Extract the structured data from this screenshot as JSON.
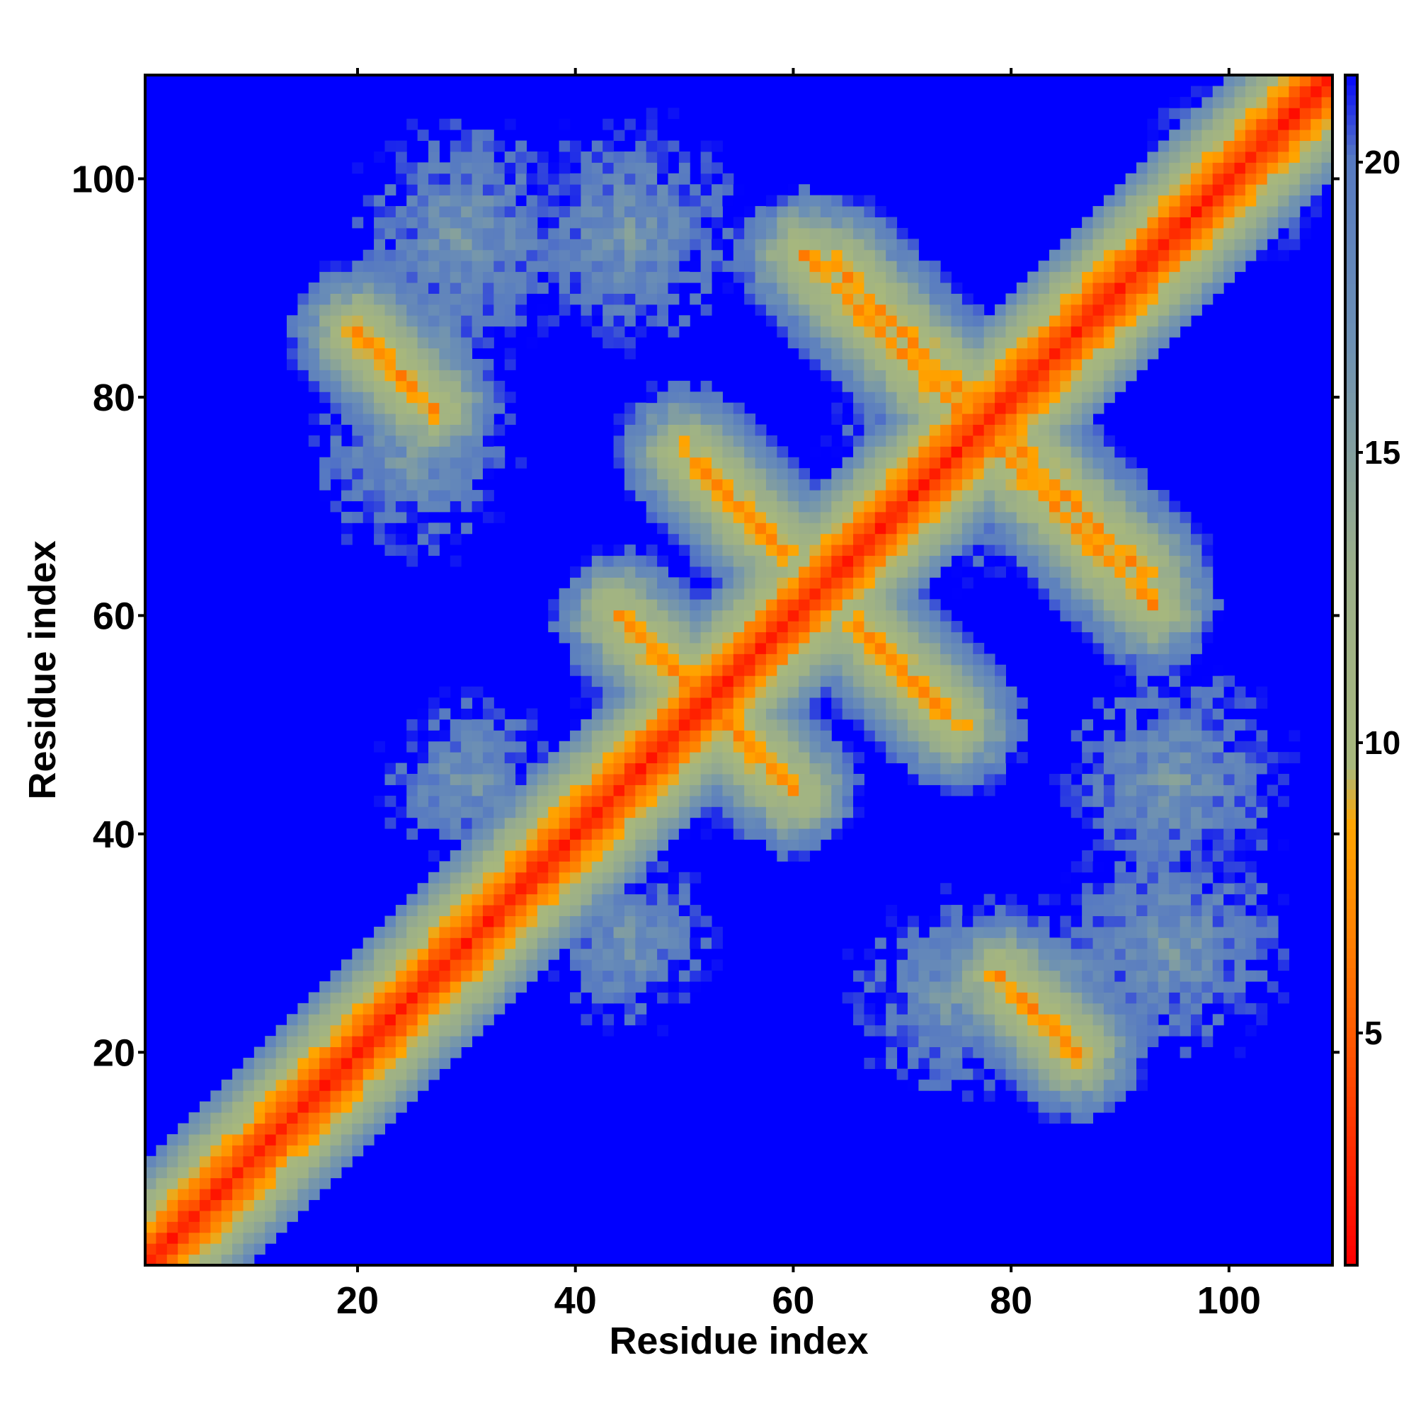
{
  "chart_data": {
    "type": "heatmap",
    "title": "",
    "xlabel": "Residue index",
    "ylabel": "Residue index",
    "xlim": [
      1,
      109
    ],
    "ylim": [
      1,
      109
    ],
    "x_ticks": [
      20,
      40,
      60,
      80,
      100
    ],
    "y_ticks": [
      20,
      40,
      60,
      80,
      100
    ],
    "colorbar": {
      "ticks": [
        5,
        10,
        15,
        20
      ],
      "range": [
        1,
        21.5
      ],
      "palette": [
        {
          "value": 1,
          "color": "#ff0000"
        },
        {
          "value": 6.5,
          "color": "#ff7f00"
        },
        {
          "value": 8.5,
          "color": "#ffa500"
        },
        {
          "value": 9.5,
          "color": "#a8b87c"
        },
        {
          "value": 13,
          "color": "#9aae8a"
        },
        {
          "value": 17,
          "color": "#6b8fb5"
        },
        {
          "value": 20,
          "color": "#5679c2"
        },
        {
          "value": 21.5,
          "color": "#0000ff"
        }
      ],
      "background_color": "#0000ff"
    },
    "matrix_size": 109,
    "description_of_values": "symmetric residue-residue distance matrix; values above the colorbar maximum are drawn as background",
    "contact_features": [
      {
        "type": "diagonal",
        "from": 1,
        "to": 109
      },
      {
        "type": "antiparallel",
        "i_start": 44,
        "i_end": 57,
        "j_start": 60,
        "j_end": 47
      },
      {
        "type": "antiparallel",
        "i_start": 52,
        "i_end": 59,
        "j_start": 73,
        "j_end": 65
      },
      {
        "type": "antiparallel",
        "i_start": 66,
        "i_end": 75,
        "j_start": 59,
        "j_end": 52
      },
      {
        "type": "antiparallel",
        "i_start": 64,
        "i_end": 76,
        "j_start": 92,
        "j_end": 79
      },
      {
        "type": "antiparallel",
        "i_start": 77,
        "i_end": 93,
        "j_start": 77,
        "j_end": 64
      },
      {
        "type": "antiparallel",
        "i_start": 20,
        "i_end": 27,
        "j_start": 86,
        "j_end": 81
      },
      {
        "type": "antiparallel",
        "i_start": 81,
        "i_end": 86,
        "j_start": 25,
        "j_end": 20
      }
    ]
  }
}
